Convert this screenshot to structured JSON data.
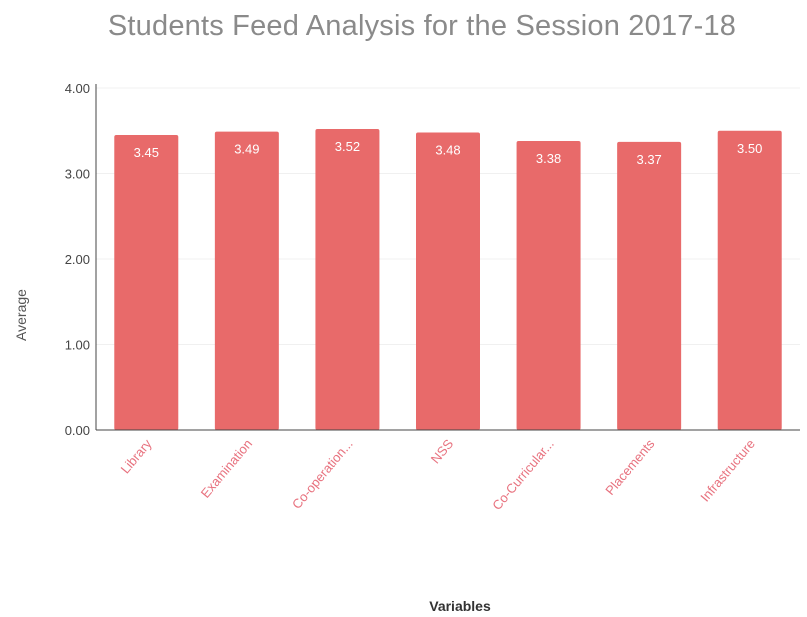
{
  "chart_data": {
    "type": "bar",
    "title": "Students Feed Analysis for the Session 2017-18",
    "xlabel": "Variables",
    "ylabel": "Average",
    "categories": [
      "Library",
      "Examination",
      "Co-operation...",
      "NSS",
      "Co-Curricular...",
      "Placements",
      "Infrastructure"
    ],
    "values": [
      3.45,
      3.49,
      3.52,
      3.48,
      3.38,
      3.37,
      3.5
    ],
    "data_labels": [
      "3.45",
      "3.49",
      "3.52",
      "3.48",
      "3.38",
      "3.37",
      "3.50"
    ],
    "ylim": [
      0,
      4
    ],
    "yticks": [
      0,
      1,
      2,
      3,
      4
    ],
    "ytick_labels": [
      "0.00",
      "1.00",
      "2.00",
      "3.00",
      "4.00"
    ],
    "grid": true,
    "colors": {
      "bar": "#e86a6a",
      "category_label": "#e8727f",
      "title": "#8a8a8a",
      "grid": "#f0f0f0",
      "axis": "#444444"
    }
  }
}
